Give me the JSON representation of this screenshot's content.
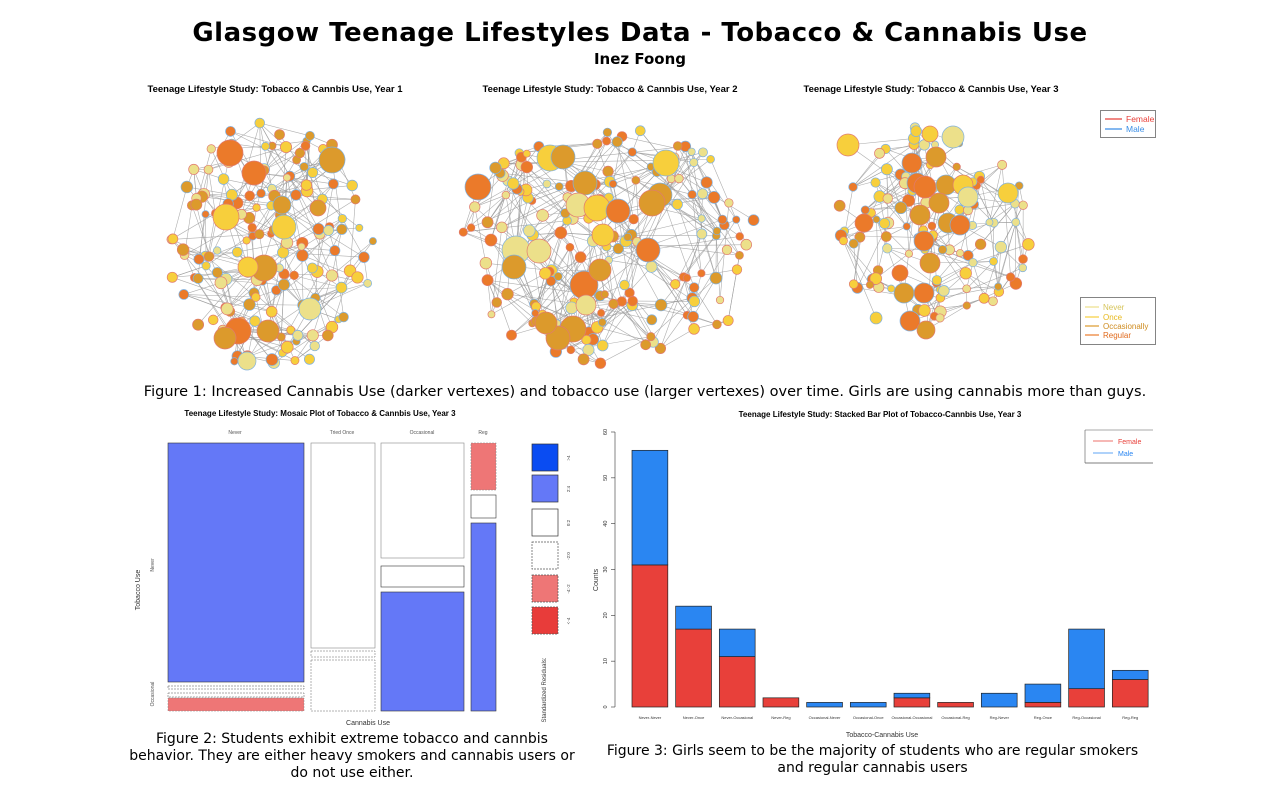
{
  "header": {
    "title": "Glasgow Teenage Lifestyles Data - Tobacco & Cannabis Use",
    "author": "Inez Foong"
  },
  "networks": {
    "titles": [
      "Teenage Lifestyle Study: Tobacco & Cannbis Use, Year 1",
      "Teenage Lifestyle Study: Tobacco & Cannbis Use, Year 2",
      "Teenage Lifestyle Study: Tobacco & Cannbis Use, Year 3"
    ],
    "gender_legend": [
      {
        "label": "Female",
        "color": "#e8403a"
      },
      {
        "label": "Male",
        "color": "#3a8ee6"
      }
    ],
    "cannabis_legend": [
      {
        "label": "Never",
        "color": "#ece08a"
      },
      {
        "label": "Once",
        "color": "#f7cf3c"
      },
      {
        "label": "Occasionally",
        "color": "#dc9a2c"
      },
      {
        "label": "Regular",
        "color": "#eb7a2a"
      }
    ],
    "caption": "Figure 1: Increased Cannabis Use (darker vertexes) and tobacco use (larger vertexes) over time. Girls are using cannabis more than guys."
  },
  "mosaic": {
    "title": "Teenage Lifestyle Study: Mosaic Plot of Tobacco & Cannbis Use, Year 3",
    "col_labels": [
      "Never",
      "Tried Once",
      "Occasional",
      "Reg"
    ],
    "row_labels": [
      "Never",
      "Occasional"
    ],
    "xlabel": "Cannabis Use",
    "ylabel": "Tobacco Use",
    "legend_title": "Standardized Residuals:",
    "legend_labels": [
      ">4",
      "2:4",
      "0:2",
      "-2:0",
      "-4:-2",
      "<-4"
    ],
    "legend_colors": [
      "#0a4cf2",
      "#6478f7",
      "#ffffff",
      "#ffffff",
      "#ee7676",
      "#e83c3a"
    ],
    "caption": "Figure 2: Students exhibit extreme tobacco and cannbis behavior. They are either heavy smokers and cannabis users or do not use either."
  },
  "chart_data": {
    "type": "bar",
    "title": "Teenage Lifestyle Study: Stacked Bar Plot of Tobacco-Cannbis Use, Year 3",
    "xlabel": "Tobacco-Cannabis Use",
    "ylabel": "Counts",
    "ylim": [
      0,
      60
    ],
    "yticks": [
      0,
      10,
      20,
      30,
      40,
      50,
      60
    ],
    "legend_position": "top-right",
    "stacked": true,
    "categories": [
      "Never-Never",
      "Never-Once",
      "Never-Occasional",
      "Never-Reg",
      "Occasional-Never",
      "Occasional-Once",
      "Occasional-Occasional",
      "Occasional-Reg",
      "Reg-Never",
      "Reg-Once",
      "Reg-Occasional",
      "Reg-Reg"
    ],
    "series": [
      {
        "name": "Female",
        "color": "#e8403a",
        "values": [
          31,
          17,
          11,
          2,
          0,
          0,
          2,
          1,
          0,
          1,
          4,
          6
        ]
      },
      {
        "name": "Male",
        "color": "#2a86f2",
        "values": [
          25,
          5,
          6,
          0,
          1,
          1,
          1,
          0,
          3,
          4,
          13,
          2
        ]
      }
    ],
    "caption": "Figure 3: Girls seem to be the majority of students who are regular smokers and regular cannabis users"
  }
}
